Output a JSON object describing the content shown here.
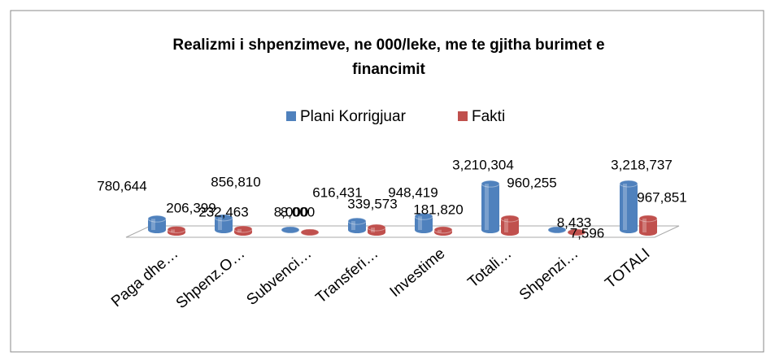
{
  "chart_data": {
    "type": "bar3d",
    "title": "Realizmi i shpenzimeve, ne 000/leke, me  te gjitha burimet e financimit",
    "categories": [
      "Paga dhe…",
      "Shpenz.O…",
      "Subvenci…",
      "Transferi…",
      "Investime",
      "Totali…",
      "Shpenzi…",
      "TOTALI"
    ],
    "series": [
      {
        "name": "Plani Korrigjuar",
        "color": "#4f81bd",
        "values": [
          780644,
          856810,
          8000,
          616431,
          948419,
          3210304,
          8433,
          3218737
        ],
        "value_labels": [
          "780,644",
          "856,810",
          "8,000",
          "616,431",
          "948,419",
          "3,210,304",
          "8,433",
          "3,218,737"
        ]
      },
      {
        "name": "Fakti",
        "color": "#c0504d",
        "values": [
          206399,
          232463,
          8000,
          339573,
          181820,
          960255,
          7596,
          967851
        ],
        "value_labels": [
          "206,399",
          "232,463",
          "8,000",
          "339,573",
          "181,820",
          "960,255",
          "7,596",
          "967,851"
        ]
      }
    ]
  }
}
